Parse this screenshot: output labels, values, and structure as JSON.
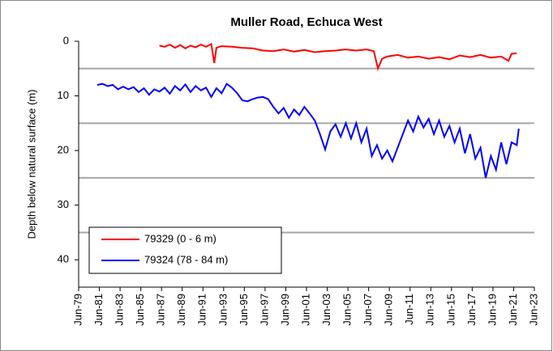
{
  "chart_data": {
    "type": "line",
    "title": "Muller Road, Echuca West",
    "y_label": "Depth below natural surface (m)",
    "ylim": [
      0,
      45
    ],
    "y_inverted": true,
    "yticks": [
      0,
      10,
      20,
      30,
      40
    ],
    "ygrid": [
      5,
      15,
      25,
      35
    ],
    "xlim": [
      1979.5,
      2023.5
    ],
    "xticks": [
      {
        "value": 1979.5,
        "label": "Jun-79"
      },
      {
        "value": 1981.5,
        "label": "Jun-81"
      },
      {
        "value": 1983.5,
        "label": "Jun-83"
      },
      {
        "value": 1985.5,
        "label": "Jun-85"
      },
      {
        "value": 1987.5,
        "label": "Jun-87"
      },
      {
        "value": 1989.5,
        "label": "Jun-89"
      },
      {
        "value": 1991.5,
        "label": "Jun-91"
      },
      {
        "value": 1993.5,
        "label": "Jun-93"
      },
      {
        "value": 1995.5,
        "label": "Jun-95"
      },
      {
        "value": 1997.5,
        "label": "Jun-97"
      },
      {
        "value": 1999.5,
        "label": "Jun-99"
      },
      {
        "value": 2001.5,
        "label": "Jun-01"
      },
      {
        "value": 2003.5,
        "label": "Jun-03"
      },
      {
        "value": 2005.5,
        "label": "Jun-05"
      },
      {
        "value": 2007.5,
        "label": "Jun-07"
      },
      {
        "value": 2009.5,
        "label": "Jun-09"
      },
      {
        "value": 2011.5,
        "label": "Jun-11"
      },
      {
        "value": 2013.5,
        "label": "Jun-13"
      },
      {
        "value": 2015.5,
        "label": "Jun-15"
      },
      {
        "value": 2017.5,
        "label": "Jun-17"
      },
      {
        "value": 2019.5,
        "label": "Jun-19"
      },
      {
        "value": 2021.5,
        "label": "Jun-21"
      },
      {
        "value": 2023.5,
        "label": "Jun-23"
      }
    ],
    "legend": "lower-left",
    "series": [
      {
        "name": "79329 (0 - 6 m)",
        "color": "#ff0000",
        "x": [
          1987.3,
          1987.8,
          1988.3,
          1988.8,
          1989.3,
          1989.8,
          1990.3,
          1990.8,
          1991.3,
          1991.8,
          1992.3,
          1992.6,
          1992.8,
          1993.3,
          1994.3,
          1995.3,
          1996.3,
          1997.3,
          1998.3,
          1999.3,
          2000.3,
          2001.3,
          2002.3,
          2003.3,
          2004.3,
          2005.3,
          2006.3,
          2007.3,
          2008.0,
          2008.4,
          2008.8,
          2009.3,
          2010.3,
          2011.3,
          2012.3,
          2013.3,
          2014.3,
          2015.3,
          2016.3,
          2017.3,
          2018.3,
          2019.3,
          2020.3,
          2021.0,
          2021.3,
          2021.8
        ],
        "values": [
          0.8,
          1.0,
          0.6,
          1.2,
          0.7,
          1.3,
          0.8,
          1.1,
          0.6,
          1.0,
          0.5,
          4.0,
          1.2,
          0.9,
          1.0,
          1.2,
          1.3,
          1.7,
          1.8,
          1.5,
          1.9,
          1.6,
          2.0,
          1.8,
          1.7,
          1.5,
          1.7,
          1.5,
          1.8,
          5.0,
          3.2,
          2.8,
          2.5,
          3.0,
          2.8,
          3.2,
          2.9,
          3.3,
          2.6,
          2.9,
          2.5,
          3.0,
          2.8,
          3.6,
          2.3,
          2.2
        ]
      },
      {
        "name": "79324 (78 - 84 m)",
        "color": "#0000ff",
        "x": [
          1981.3,
          1981.8,
          1982.3,
          1982.8,
          1983.3,
          1983.8,
          1984.3,
          1984.8,
          1985.3,
          1985.8,
          1986.3,
          1986.8,
          1987.3,
          1987.8,
          1988.3,
          1988.8,
          1989.3,
          1989.8,
          1990.3,
          1990.8,
          1991.3,
          1991.8,
          1992.3,
          1992.8,
          1993.3,
          1993.8,
          1994.3,
          1994.8,
          1995.3,
          1995.8,
          1996.3,
          1996.8,
          1997.3,
          1997.8,
          1998.3,
          1998.8,
          1999.3,
          1999.8,
          2000.3,
          2000.8,
          2001.3,
          2001.8,
          2002.3,
          2002.8,
          2003.3,
          2003.8,
          2004.3,
          2004.8,
          2005.3,
          2005.8,
          2006.3,
          2006.8,
          2007.3,
          2007.8,
          2008.3,
          2008.8,
          2009.3,
          2009.8,
          2010.3,
          2010.8,
          2011.3,
          2011.8,
          2012.3,
          2012.8,
          2013.3,
          2013.8,
          2014.3,
          2014.8,
          2015.3,
          2015.8,
          2016.3,
          2016.8,
          2017.3,
          2017.8,
          2018.3,
          2018.8,
          2019.3,
          2019.8,
          2020.3,
          2020.8,
          2021.3,
          2021.8,
          2022.0
        ],
        "values": [
          8.0,
          7.8,
          8.2,
          8.0,
          8.8,
          8.3,
          8.8,
          8.4,
          9.3,
          8.6,
          9.8,
          8.8,
          9.2,
          8.5,
          9.6,
          8.2,
          9.0,
          7.9,
          9.3,
          8.2,
          9.0,
          8.5,
          10.2,
          8.6,
          9.5,
          7.8,
          8.5,
          9.5,
          10.8,
          11.0,
          10.6,
          10.3,
          10.2,
          10.6,
          12.0,
          13.2,
          12.2,
          14.0,
          12.5,
          13.5,
          12.0,
          13.2,
          14.5,
          17.0,
          19.8,
          16.5,
          15.2,
          17.5,
          15.0,
          17.8,
          15.0,
          18.5,
          16.0,
          21.0,
          19.0,
          21.5,
          20.0,
          22.0,
          19.5,
          17.0,
          14.5,
          16.5,
          13.8,
          15.8,
          14.2,
          17.0,
          14.5,
          17.5,
          15.5,
          18.5,
          16.0,
          20.5,
          17.0,
          21.5,
          19.5,
          25.0,
          21.0,
          23.5,
          18.5,
          22.5,
          18.5,
          19.0,
          16.0
        ]
      }
    ]
  }
}
